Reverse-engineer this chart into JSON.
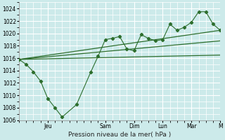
{
  "bg_color": "#cceaea",
  "grid_color": "#ffffff",
  "line_color": "#2d6e2d",
  "xlabel": "Pression niveau de la mer( hPa )",
  "ylim": [
    1006,
    1025
  ],
  "yticks": [
    1006,
    1008,
    1010,
    1012,
    1014,
    1016,
    1018,
    1020,
    1022,
    1024
  ],
  "xlim": [
    0,
    168
  ],
  "xtick_positions": [
    24,
    72,
    96,
    120,
    144,
    168
  ],
  "xtick_labels": [
    "Jeu",
    "Sam",
    "Dim",
    "Lun",
    "Mar",
    "M"
  ],
  "vline_positions": [
    24,
    72,
    96,
    120,
    144,
    168
  ],
  "series1_x": [
    0,
    6,
    12,
    18,
    24,
    30,
    36,
    48,
    60,
    66,
    72,
    78,
    84,
    90,
    96,
    102,
    108,
    114,
    120,
    126,
    132,
    138,
    144,
    150,
    156,
    162,
    168
  ],
  "series1_y": [
    1015.8,
    1015.0,
    1013.8,
    1012.3,
    1009.5,
    1008.0,
    1006.5,
    1008.5,
    1013.8,
    1016.3,
    1019.0,
    1019.2,
    1019.5,
    1017.5,
    1017.2,
    1019.8,
    1019.2,
    1018.8,
    1019.0,
    1021.5,
    1020.5,
    1021.0,
    1021.8,
    1023.5,
    1023.5,
    1021.5,
    1020.5
  ],
  "series2_x": [
    0,
    168
  ],
  "series2_y": [
    1015.8,
    1020.5
  ],
  "series3_x": [
    0,
    168
  ],
  "series3_y": [
    1015.8,
    1016.5
  ],
  "series4_x": [
    0,
    168
  ],
  "series4_y": [
    1015.8,
    1018.8
  ]
}
